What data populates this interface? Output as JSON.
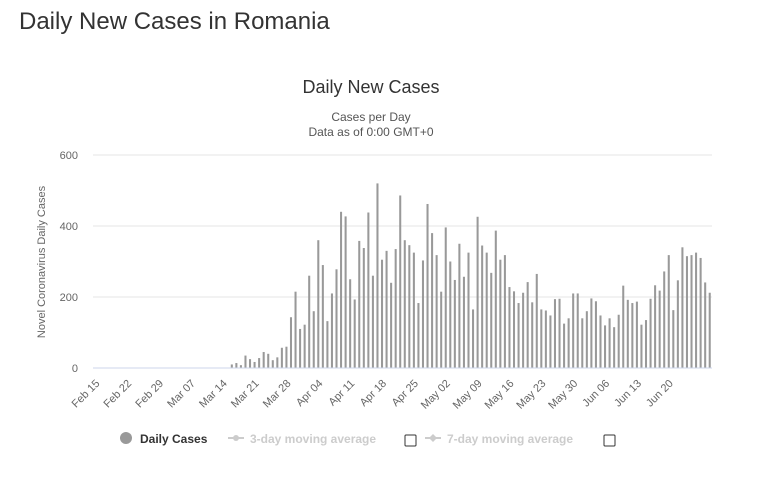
{
  "page": {
    "heading": "Daily New Cases in Romania"
  },
  "chart_data": {
    "type": "bar",
    "title": "Daily New Cases",
    "subtitle_line1": "Cases per Day",
    "subtitle_line2": "Data as of 0:00 GMT+0",
    "xlabel": "",
    "ylabel": "Novel Coronavirus Daily Cases",
    "ylim": [
      0,
      600
    ],
    "yticks": [
      0,
      200,
      400,
      600
    ],
    "x_tick_labels": [
      "Feb 15",
      "Feb 22",
      "Feb 29",
      "Mar 07",
      "Mar 14",
      "Mar 21",
      "Mar 28",
      "Apr 04",
      "Apr 11",
      "Apr 18",
      "Apr 25",
      "May 02",
      "May 09",
      "May 16",
      "May 23",
      "May 30",
      "Jun 06",
      "Jun 13",
      "Jun 20"
    ],
    "x_tick_every": 7,
    "grid": true,
    "bar_color": "#999999",
    "series": [
      {
        "name": "Daily Cases",
        "values": [
          0,
          0,
          0,
          0,
          0,
          0,
          0,
          0,
          0,
          0,
          0,
          0,
          0,
          0,
          0,
          0,
          0,
          0,
          0,
          0,
          0,
          0,
          0,
          0,
          0,
          0,
          0,
          0,
          0,
          0,
          10,
          14,
          8,
          35,
          25,
          17,
          28,
          45,
          40,
          22,
          30,
          57,
          60,
          143,
          215,
          110,
          122,
          260,
          160,
          360,
          290,
          132,
          210,
          278,
          440,
          427,
          250,
          193,
          358,
          338,
          438,
          260,
          520,
          305,
          330,
          240,
          335,
          486,
          360,
          346,
          325,
          183,
          303,
          462,
          380,
          318,
          215,
          396,
          300,
          248,
          350,
          257,
          325,
          165,
          426,
          345,
          325,
          268,
          387,
          305,
          318,
          228,
          216,
          183,
          212,
          242,
          185,
          265,
          165,
          162,
          148,
          194,
          195,
          125,
          140,
          210,
          210,
          140,
          160,
          196,
          188,
          148,
          120,
          140,
          115,
          150,
          232,
          192,
          183,
          187,
          122,
          135,
          195,
          233,
          218,
          272,
          318,
          163,
          247,
          340,
          315,
          318,
          325,
          310,
          241,
          212
        ]
      }
    ],
    "legend": {
      "placement": "bottom",
      "items": [
        "Daily Cases",
        "3-day moving average",
        "7-day moving average"
      ]
    }
  }
}
